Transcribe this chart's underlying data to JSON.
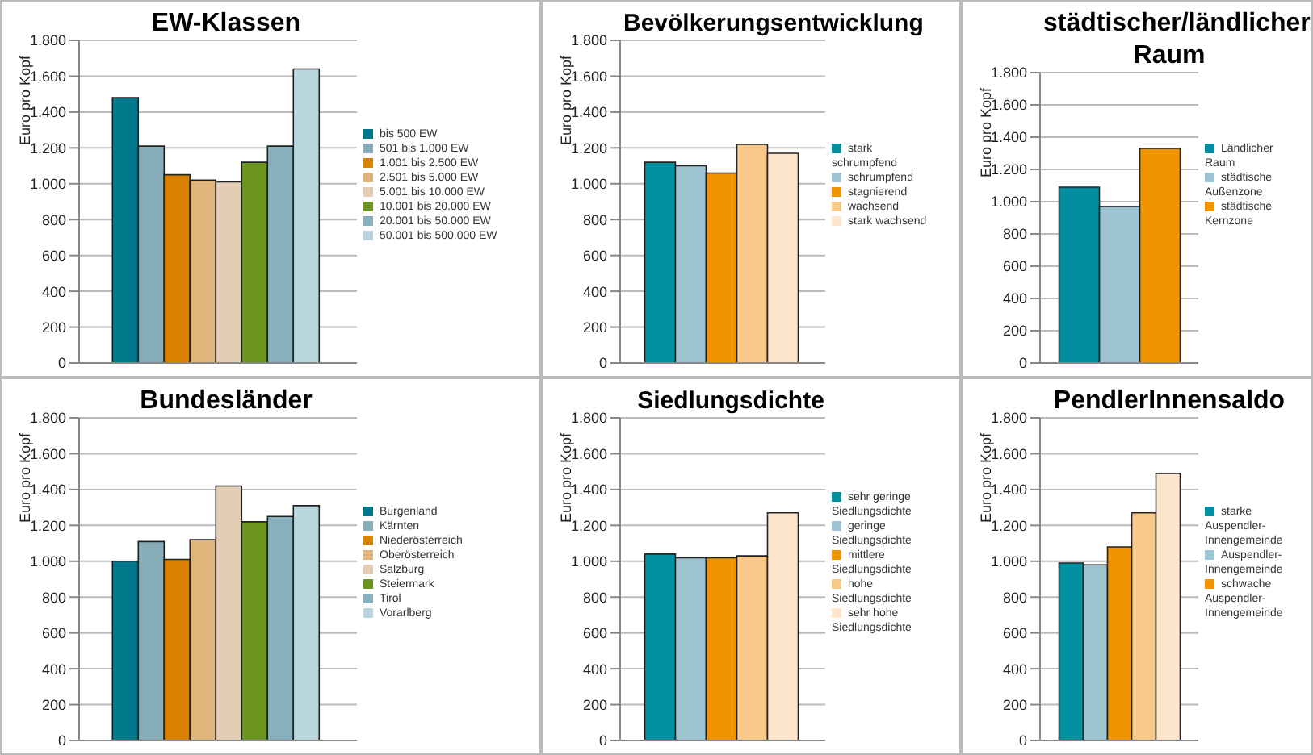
{
  "chart_data": [
    {
      "type": "bar",
      "title": "EW-Klassen",
      "ylabel": "Euro pro Kopf",
      "categories": [
        null
      ],
      "ylim": [
        0,
        1800
      ],
      "yticks": [
        0,
        200,
        400,
        600,
        800,
        {
          "value": 1000,
          "label": "1.000"
        },
        {
          "value": 1200,
          "label": "1.200"
        },
        {
          "value": 1400,
          "label": "1.400"
        },
        {
          "value": 1600,
          "label": "1.600"
        },
        {
          "value": 1800,
          "label": "1.800"
        }
      ],
      "grid": "y",
      "legend": "right",
      "series": [
        {
          "name": "bis 500 EW",
          "color": "#00788c",
          "values": [
            1480
          ]
        },
        {
          "name": "501 bis 1.000 EW",
          "color": "#86adb8",
          "values": [
            1210
          ]
        },
        {
          "name": "1.001 bis 2.500 EW",
          "color": "#d98200",
          "values": [
            1050
          ]
        },
        {
          "name": "2.501 bis 5.000 EW",
          "color": "#e0b47a",
          "values": [
            1020
          ]
        },
        {
          "name": "5.001 bis 10.000 EW",
          "color": "#e4cdb5",
          "values": [
            1010
          ]
        },
        {
          "name": "10.001 bis 20.000 EW",
          "color": "#6b951e",
          "values": [
            1120
          ]
        },
        {
          "name": "20.001 bis 50.000 EW",
          "color": "#86b0bc",
          "values": [
            1210
          ]
        },
        {
          "name": "50.001 bis 500.000 EW",
          "color": "#b9d6de",
          "values": [
            1640
          ]
        }
      ]
    },
    {
      "type": "bar",
      "title": "Bevölkerungsentwicklung",
      "ylabel": "Euro pro Kopf",
      "categories": [
        null
      ],
      "ylim": [
        0,
        1800
      ],
      "yticks": [
        0,
        200,
        400,
        600,
        800,
        {
          "value": 1000,
          "label": "1.000"
        },
        {
          "value": 1200,
          "label": "1.200"
        },
        {
          "value": 1400,
          "label": "1.400"
        },
        {
          "value": 1600,
          "label": "1.600"
        },
        {
          "value": 1800,
          "label": "1.800"
        }
      ],
      "grid": "y",
      "legend": "right",
      "series": [
        {
          "name": "stark schrumpfend",
          "color": "#0090a0",
          "values": [
            1120
          ]
        },
        {
          "name": "schrumpfend",
          "color": "#9cc4d2",
          "values": [
            1100
          ]
        },
        {
          "name": "stagnierend",
          "color": "#f09400",
          "values": [
            1060
          ]
        },
        {
          "name": "wachsend",
          "color": "#f9c98a",
          "values": [
            1220
          ]
        },
        {
          "name": "stark wachsend",
          "color": "#fde6cc",
          "values": [
            1170
          ]
        }
      ]
    },
    {
      "type": "bar",
      "title": "städtischer/ländlicher Raum",
      "ylabel": "Euro pro Kopf",
      "categories": [
        null
      ],
      "ylim": [
        0,
        1800
      ],
      "yticks": [
        0,
        200,
        400,
        600,
        800,
        {
          "value": 1000,
          "label": "1.000"
        },
        {
          "value": 1200,
          "label": "1.200"
        },
        {
          "value": 1400,
          "label": "1.400"
        },
        {
          "value": 1600,
          "label": "1.600"
        },
        {
          "value": 1800,
          "label": "1.800"
        }
      ],
      "grid": "y",
      "legend": "right",
      "series": [
        {
          "name": "Ländlicher Raum",
          "color": "#008e9e",
          "values": [
            1090
          ]
        },
        {
          "name": "städtische Außenzone",
          "color": "#9cc4d2",
          "values": [
            970
          ]
        },
        {
          "name": "städtische Kernzone",
          "color": "#f09400",
          "values": [
            1330
          ]
        }
      ]
    },
    {
      "type": "bar",
      "title": "Bundesländer",
      "ylabel": "Euro pro Kopf",
      "categories": [
        null
      ],
      "ylim": [
        0,
        1800
      ],
      "yticks": [
        0,
        200,
        400,
        600,
        800,
        {
          "value": 1000,
          "label": "1.000"
        },
        {
          "value": 1200,
          "label": "1.200"
        },
        {
          "value": 1400,
          "label": "1.400"
        },
        {
          "value": 1600,
          "label": "1.600"
        },
        {
          "value": 1800,
          "label": "1.800"
        }
      ],
      "grid": "y",
      "legend": "right",
      "series": [
        {
          "name": "Burgenland",
          "color": "#00788c",
          "values": [
            1000
          ]
        },
        {
          "name": "Kärnten",
          "color": "#86adb8",
          "values": [
            1110
          ]
        },
        {
          "name": "Niederösterreich",
          "color": "#d98200",
          "values": [
            1010
          ]
        },
        {
          "name": "Oberösterreich",
          "color": "#e0b47a",
          "values": [
            1120
          ]
        },
        {
          "name": "Salzburg",
          "color": "#e4cdb5",
          "values": [
            1420
          ]
        },
        {
          "name": "Steiermark",
          "color": "#6b951e",
          "values": [
            1220
          ]
        },
        {
          "name": "Tirol",
          "color": "#86b0bc",
          "values": [
            1250
          ]
        },
        {
          "name": "Vorarlberg",
          "color": "#b9d6de",
          "values": [
            1310
          ]
        }
      ]
    },
    {
      "type": "bar",
      "title": "Siedlungsdichte",
      "ylabel": "Euro pro Kopf",
      "categories": [
        null
      ],
      "ylim": [
        0,
        1800
      ],
      "yticks": [
        0,
        200,
        400,
        600,
        800,
        {
          "value": 1000,
          "label": "1.000"
        },
        {
          "value": 1200,
          "label": "1.200"
        },
        {
          "value": 1400,
          "label": "1.400"
        },
        {
          "value": 1600,
          "label": "1.600"
        },
        {
          "value": 1800,
          "label": "1.800"
        }
      ],
      "grid": "y",
      "legend": "right",
      "series": [
        {
          "name": "sehr geringe Siedlungsdichte",
          "color": "#0090a0",
          "values": [
            1040
          ]
        },
        {
          "name": "geringe Siedlungsdichte",
          "color": "#9cc4d2",
          "values": [
            1020
          ]
        },
        {
          "name": "mittlere Siedlungsdichte",
          "color": "#f09400",
          "values": [
            1020
          ]
        },
        {
          "name": "hohe Siedlungsdichte",
          "color": "#f9c98a",
          "values": [
            1030
          ]
        },
        {
          "name": "sehr hohe Siedlungsdichte",
          "color": "#fde6cc",
          "values": [
            1270
          ]
        }
      ]
    },
    {
      "type": "bar",
      "title": "PendlerInnensaldo",
      "ylabel": "Euro pro Kopf",
      "categories": [
        null
      ],
      "ylim": [
        0,
        1800
      ],
      "yticks": [
        0,
        200,
        400,
        600,
        800,
        {
          "value": 1000,
          "label": "1.000"
        },
        {
          "value": 1200,
          "label": "1.200"
        },
        {
          "value": 1400,
          "label": "1.400"
        },
        {
          "value": 1600,
          "label": "1.600"
        },
        {
          "value": 1800,
          "label": "1.800"
        }
      ],
      "grid": "y",
      "legend": "right",
      "series": [
        {
          "name": "starke Auspendler-Innengemeinde",
          "color": "#0090a0",
          "values": [
            990
          ]
        },
        {
          "name": "Auspendler-Innengemeinde",
          "color": "#9cc4d2",
          "values": [
            980
          ]
        },
        {
          "name": "schwache Auspendler-Innengemeinde",
          "color": "#f09400",
          "values": [
            1080
          ]
        },
        {
          "color": "#f9c98a",
          "values": [
            1270
          ]
        },
        {
          "color": "#fde6cc",
          "values": [
            1490
          ]
        }
      ]
    }
  ]
}
